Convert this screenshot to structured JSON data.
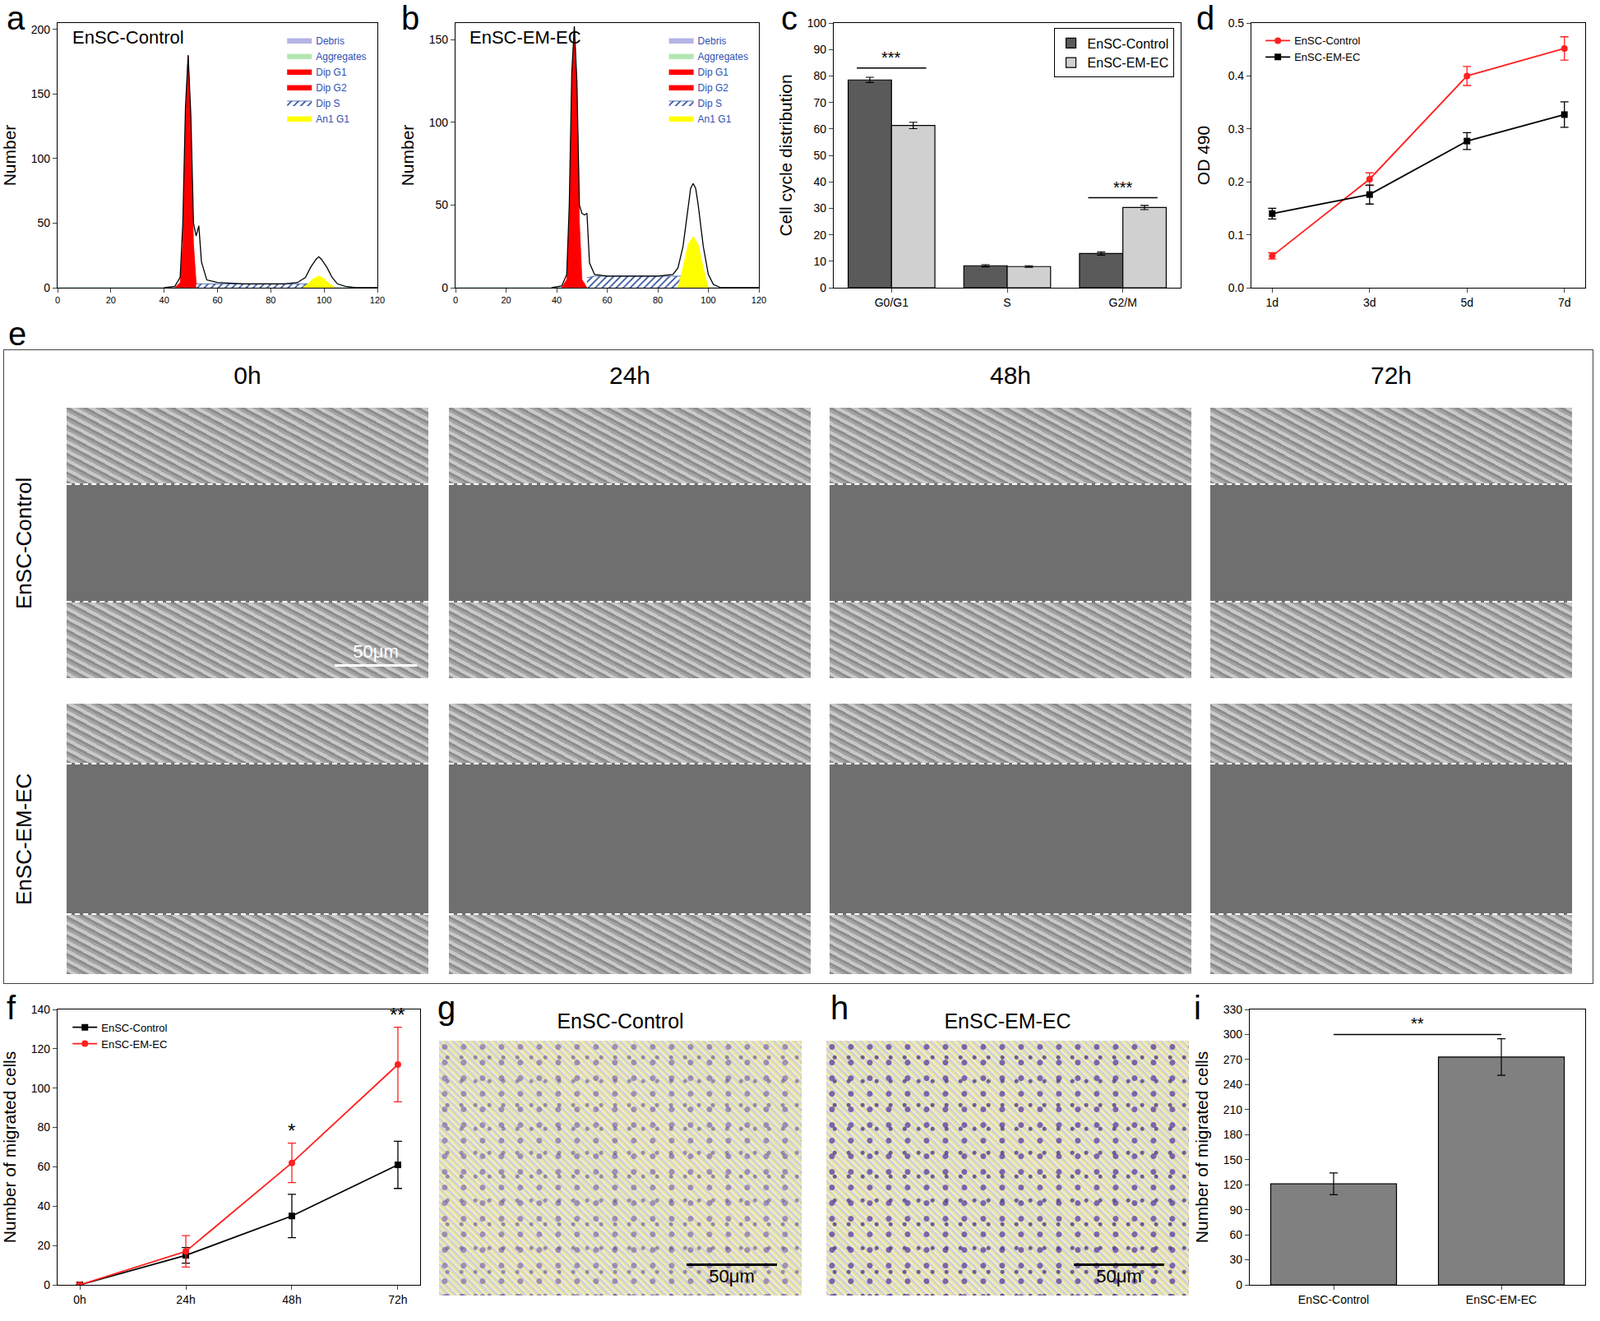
{
  "chart_data": [
    {
      "label": "a",
      "type": "area",
      "title": "EnSC-Control",
      "y_label": "Number",
      "xlim": [
        0,
        120
      ],
      "xticks": [
        0,
        20,
        40,
        60,
        80,
        100,
        120
      ],
      "ylim": [
        0,
        205
      ],
      "yticks": [
        0,
        50,
        100,
        150,
        200
      ],
      "legend": "top right",
      "series": [
        {
          "name": "Debris",
          "type": "area",
          "color": "#b4b4e6",
          "x": [
            0,
            120
          ],
          "values": [
            0,
            0
          ]
        },
        {
          "name": "Aggregates",
          "type": "area",
          "color": "#b4e6b4",
          "x": [
            0,
            120
          ],
          "values": [
            0,
            0
          ]
        },
        {
          "name": "Dip G1",
          "type": "area",
          "color": "#ff0000",
          "x": [
            44,
            46,
            47,
            48,
            49,
            50,
            51,
            52,
            53
          ],
          "values": [
            0,
            4,
            34,
            126,
            180,
            126,
            34,
            4,
            0
          ]
        },
        {
          "name": "Dip G2",
          "type": "area",
          "color": "#ff0000",
          "x": [
            92,
            94,
            96,
            98,
            100,
            102,
            104
          ],
          "values": [
            0,
            2,
            6,
            8,
            6,
            2,
            0
          ]
        },
        {
          "name": "Dip S",
          "type": "hatched_area",
          "color": "#ffffff",
          "x": [
            52,
            55,
            60,
            70,
            80,
            90,
            95
          ],
          "values": [
            3,
            3,
            3,
            3,
            3,
            3,
            3
          ]
        },
        {
          "name": "An1 G1",
          "type": "area",
          "color": "#ffff00",
          "x": [
            92,
            94,
            96,
            98,
            100,
            102,
            104
          ],
          "values": [
            0,
            3,
            7,
            9,
            7,
            3,
            0
          ]
        },
        {
          "type": "line",
          "color": "#000000",
          "x": [
            40,
            44,
            46,
            47,
            48,
            49,
            50,
            51,
            52,
            53,
            54,
            56,
            60,
            70,
            80,
            85,
            90,
            93,
            95,
            97,
            98,
            99,
            101,
            103,
            105,
            108,
            112,
            120
          ],
          "values": [
            0,
            1,
            8,
            50,
            140,
            180,
            134,
            50,
            40,
            48,
            20,
            6,
            4,
            3,
            3,
            3,
            4,
            8,
            16,
            22,
            24,
            22,
            16,
            8,
            3,
            1,
            0,
            0
          ]
        }
      ]
    },
    {
      "label": "b",
      "type": "area",
      "title": "EnSC-EM-EC",
      "y_label": "Number",
      "xlim": [
        0,
        120
      ],
      "xticks": [
        0,
        20,
        40,
        60,
        80,
        100,
        120
      ],
      "ylim": [
        0,
        160
      ],
      "yticks": [
        0,
        50,
        100,
        150
      ],
      "legend": "top right",
      "series": [
        {
          "name": "Debris",
          "type": "area",
          "color": "#b4b4e6",
          "x": [
            0,
            120
          ],
          "values": [
            0,
            0
          ]
        },
        {
          "name": "Aggregates",
          "type": "area",
          "color": "#b4e6b4",
          "x": [
            0,
            120
          ],
          "values": [
            0,
            0
          ]
        },
        {
          "name": "Dip G1",
          "type": "area",
          "color": "#ff0000",
          "x": [
            42,
            44,
            45,
            46,
            47,
            48,
            49,
            50,
            52
          ],
          "values": [
            0,
            5,
            40,
            120,
            158,
            120,
            40,
            5,
            0
          ]
        },
        {
          "name": "Dip G2",
          "type": "area",
          "color": "#ff0000",
          "x": [
            88,
            90,
            92,
            94,
            96,
            98,
            100
          ],
          "values": [
            0,
            4,
            9,
            12,
            9,
            4,
            0
          ]
        },
        {
          "name": "Dip S",
          "type": "hatched_area",
          "color": "#ffffff",
          "x": [
            52,
            55,
            60,
            70,
            80,
            90,
            93
          ],
          "values": [
            6,
            7,
            7,
            7,
            7,
            7,
            6
          ]
        },
        {
          "name": "An1 G1",
          "type": "area",
          "color": "#ffff00",
          "x": [
            88,
            90,
            92,
            94,
            96,
            98,
            100
          ],
          "values": [
            0,
            12,
            26,
            31,
            26,
            12,
            0
          ]
        },
        {
          "type": "line",
          "color": "#000000",
          "x": [
            38,
            42,
            44,
            45,
            46,
            47,
            48,
            49,
            50,
            51,
            52,
            53,
            55,
            60,
            70,
            80,
            86,
            88,
            90,
            92,
            93,
            94,
            95,
            96,
            98,
            100,
            102,
            105,
            110,
            120
          ],
          "values": [
            0,
            1,
            8,
            50,
            130,
            158,
            125,
            50,
            45,
            44,
            45,
            15,
            8,
            7,
            7,
            7,
            8,
            12,
            25,
            50,
            60,
            63,
            60,
            50,
            25,
            8,
            2,
            0,
            0,
            0
          ]
        }
      ]
    },
    {
      "label": "c",
      "type": "bar",
      "y_label": "Cell cycle distribution",
      "categories": [
        "G0/G1",
        "S",
        "G2/M"
      ],
      "ylim": [
        0,
        100
      ],
      "yticks": [
        0,
        10,
        20,
        30,
        40,
        50,
        60,
        70,
        80,
        90,
        100
      ],
      "legend": "top right",
      "series": [
        {
          "name": "EnSC-Control",
          "color": "#5a5a5a",
          "values": [
            78.5,
            8.3,
            12.9
          ],
          "errors": [
            1.0,
            0.4,
            0.6
          ]
        },
        {
          "name": "EnSC-EM-EC",
          "color": "#d0d0d0",
          "values": [
            61.3,
            8.0,
            30.3
          ],
          "errors": [
            1.2,
            0.3,
            0.8
          ]
        }
      ],
      "annotations": [
        {
          "text": "***",
          "y": 83,
          "from": "G0/G1",
          "to": "G0/G1"
        },
        {
          "text": "***",
          "y": 34,
          "from": "G2/M",
          "to": "G2/M"
        }
      ]
    },
    {
      "label": "d",
      "type": "line",
      "y_label": "OD 490",
      "categories": [
        "1d",
        "3d",
        "5d",
        "7d"
      ],
      "ylim": [
        0,
        0.5
      ],
      "yticks": [
        {
          "value": 0,
          "label": "0.0"
        },
        0.1,
        0.2,
        0.3,
        0.4,
        0.5
      ],
      "legend": "top left",
      "series": [
        {
          "name": "EnSC-Control",
          "color": "#ff2020",
          "marker": "circle",
          "values": [
            0.06,
            0.205,
            0.4,
            0.452
          ],
          "errors": [
            0.006,
            0.012,
            0.018,
            0.022
          ]
        },
        {
          "name": "EnSC-EM-EC",
          "color": "#000000",
          "marker": "square",
          "values": [
            0.14,
            0.176,
            0.277,
            0.327
          ],
          "errors": [
            0.01,
            0.018,
            0.016,
            0.024
          ]
        }
      ]
    },
    {
      "label": "f",
      "type": "line",
      "y_label": "Number of migrated cells",
      "categories": [
        "0h",
        "24h",
        "48h",
        "72h"
      ],
      "ylim": [
        0,
        140
      ],
      "yticks": [
        0,
        20,
        40,
        60,
        80,
        100,
        120,
        140
      ],
      "legend": "top left",
      "series": [
        {
          "name": "EnSC-Control",
          "color": "#000000",
          "marker": "square",
          "values": [
            0,
            15,
            35,
            61
          ],
          "errors": [
            0,
            4,
            11,
            12
          ]
        },
        {
          "name": "EnSC-EM-EC",
          "color": "#ff2020",
          "marker": "circle",
          "values": [
            0,
            17,
            62,
            112
          ],
          "errors": [
            0,
            8,
            10,
            19
          ]
        }
      ],
      "annotations": [
        {
          "text": "*",
          "x": "48h",
          "y": 72
        },
        {
          "text": "**",
          "x": "72h",
          "y": 131
        }
      ]
    },
    {
      "label": "i",
      "type": "bar",
      "y_label": "Number of migrated cells",
      "categories": [
        "EnSC-Control",
        "EnSC-EM-EC"
      ],
      "ylim": [
        0,
        330
      ],
      "yticks": [
        0,
        30,
        60,
        90,
        120,
        150,
        180,
        210,
        240,
        270,
        300,
        330
      ],
      "color": "#808080",
      "values": [
        121,
        273
      ],
      "errors": [
        13,
        22
      ],
      "annotations": [
        {
          "text": "**",
          "y": 300,
          "from": "EnSC-Control",
          "to": "EnSC-EM-EC"
        }
      ]
    }
  ],
  "micrographs": {
    "label": "e",
    "columns": [
      "0h",
      "24h",
      "48h",
      "72h"
    ],
    "rows": [
      "EnSC-Control",
      "EnSC-EM-EC"
    ],
    "scale_bar": "50μm"
  },
  "transwell": [
    {
      "label": "g",
      "title": "EnSC-Control",
      "scale_bar": "50μm"
    },
    {
      "label": "h",
      "title": "EnSC-EM-EC",
      "scale_bar": "50μm"
    }
  ]
}
